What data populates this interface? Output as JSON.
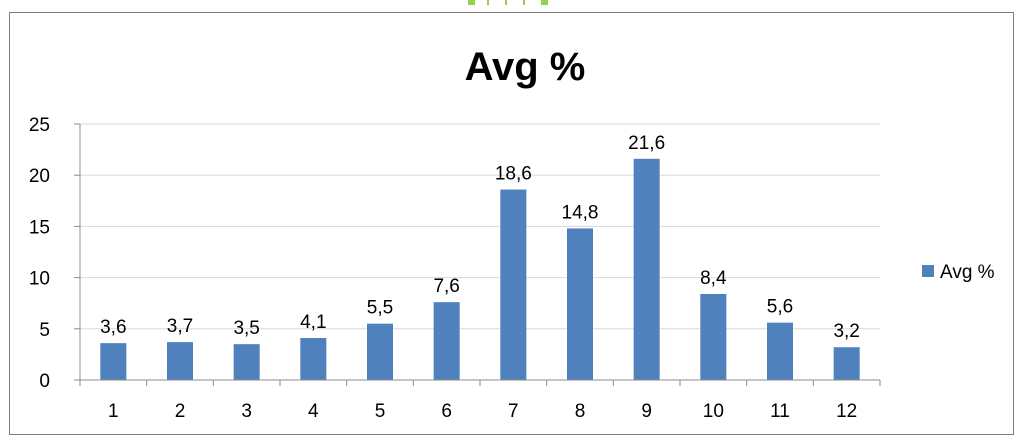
{
  "colors": {
    "bar": "#4f81bd",
    "axis": "#8c8c8c",
    "grid": "#d9d9d9",
    "frame": "#7f7f7f",
    "top_marks": "#92d050"
  },
  "chart_data": {
    "type": "bar",
    "title": "Avg %",
    "xlabel": "",
    "ylabel": "",
    "categories": [
      "1",
      "2",
      "3",
      "4",
      "5",
      "6",
      "7",
      "8",
      "9",
      "10",
      "11",
      "12"
    ],
    "series": [
      {
        "name": "Avg %",
        "values": [
          3.6,
          3.7,
          3.5,
          4.1,
          5.5,
          7.6,
          18.6,
          14.8,
          21.6,
          8.4,
          5.6,
          3.2
        ],
        "data_labels": [
          "3,6",
          "3,7",
          "3,5",
          "4,1",
          "5,5",
          "7,6",
          "18,6",
          "14,8",
          "21,6",
          "8,4",
          "5,6",
          "3,2"
        ]
      }
    ],
    "ylim": [
      0,
      25
    ],
    "yticks": [
      0,
      5,
      10,
      15,
      20,
      25
    ],
    "grid": true,
    "legend": "right"
  }
}
